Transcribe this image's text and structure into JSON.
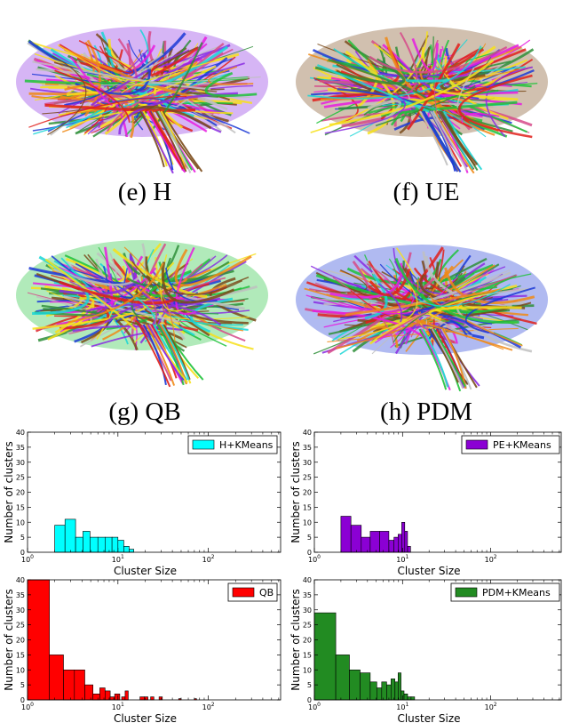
{
  "captions": {
    "e": "(e) H",
    "f": "(f) UE",
    "g": "(g) QB",
    "h": "(h) PDM"
  },
  "brain_colors": [
    "#e0201b",
    "#1fc23a",
    "#1c3ad6",
    "#e81be0",
    "#f7e01a",
    "#19d6d6",
    "#f08a16",
    "#8a2be2",
    "#7a4a1a",
    "#2f8f3a",
    "#c0c0c0",
    "#d64a8a"
  ],
  "chart_data": [
    {
      "type": "bar",
      "title": "",
      "xlabel": "Cluster Size",
      "ylabel": "Number of clusters",
      "xscale": "log",
      "xlim": [
        1,
        630
      ],
      "ylim": [
        0,
        40
      ],
      "yticks": [
        "0",
        "5",
        "10",
        "15",
        "20",
        "25",
        "30",
        "35",
        "40"
      ],
      "xticks": [
        "10^0",
        "10^1",
        "10^2"
      ],
      "legend": {
        "label": "H+KMeans",
        "placement": "top-right"
      },
      "color": "#00ffff",
      "bins": [
        {
          "x0": 2,
          "x1": 2.6,
          "count": 9
        },
        {
          "x0": 2.6,
          "x1": 3.4,
          "count": 11
        },
        {
          "x0": 3.4,
          "x1": 4.1,
          "count": 5
        },
        {
          "x0": 4.1,
          "x1": 4.9,
          "count": 7
        },
        {
          "x0": 4.9,
          "x1": 6.0,
          "count": 5
        },
        {
          "x0": 6.0,
          "x1": 7.2,
          "count": 5
        },
        {
          "x0": 7.2,
          "x1": 8.6,
          "count": 5
        },
        {
          "x0": 8.6,
          "x1": 10,
          "count": 5
        },
        {
          "x0": 10,
          "x1": 11.6,
          "count": 4
        },
        {
          "x0": 11.6,
          "x1": 13.3,
          "count": 2
        },
        {
          "x0": 13.3,
          "x1": 15,
          "count": 1
        }
      ]
    },
    {
      "type": "bar",
      "title": "",
      "xlabel": "Cluster Size",
      "ylabel": "Number of clusters",
      "xscale": "log",
      "xlim": [
        1,
        630
      ],
      "ylim": [
        0,
        40
      ],
      "yticks": [
        "0",
        "5",
        "10",
        "15",
        "20",
        "25",
        "30",
        "35",
        "40"
      ],
      "xticks": [
        "10^0",
        "10^1",
        "10^2"
      ],
      "legend": {
        "label": "PE+KMeans",
        "placement": "top-right"
      },
      "color": "#8b00d4",
      "bins": [
        {
          "x0": 2,
          "x1": 2.6,
          "count": 12
        },
        {
          "x0": 2.6,
          "x1": 3.4,
          "count": 9
        },
        {
          "x0": 3.4,
          "x1": 4.3,
          "count": 5
        },
        {
          "x0": 4.3,
          "x1": 5.5,
          "count": 7
        },
        {
          "x0": 5.5,
          "x1": 7.0,
          "count": 7
        },
        {
          "x0": 7.0,
          "x1": 8.0,
          "count": 4
        },
        {
          "x0": 8.0,
          "x1": 8.9,
          "count": 5
        },
        {
          "x0": 8.9,
          "x1": 9.8,
          "count": 6
        },
        {
          "x0": 9.8,
          "x1": 10.6,
          "count": 10
        },
        {
          "x0": 10.6,
          "x1": 11.4,
          "count": 7
        },
        {
          "x0": 11.4,
          "x1": 12.3,
          "count": 2
        }
      ]
    },
    {
      "type": "bar",
      "title": "",
      "xlabel": "Cluster Size",
      "ylabel": "Number of clusters",
      "xscale": "log",
      "xlim": [
        1,
        630
      ],
      "ylim": [
        0,
        40
      ],
      "yticks": [
        "0",
        "5",
        "10",
        "15",
        "20",
        "25",
        "30",
        "35",
        "40"
      ],
      "xticks": [
        "10^0",
        "10^1",
        "10^2"
      ],
      "legend": {
        "label": "QB",
        "placement": "top-right"
      },
      "color": "#ff0000",
      "bins": [
        {
          "x0": 1,
          "x1": 1.75,
          "count": 40
        },
        {
          "x0": 1.75,
          "x1": 2.5,
          "count": 15
        },
        {
          "x0": 2.5,
          "x1": 3.3,
          "count": 10
        },
        {
          "x0": 3.3,
          "x1": 4.3,
          "count": 10
        },
        {
          "x0": 4.3,
          "x1": 5.3,
          "count": 5
        },
        {
          "x0": 5.3,
          "x1": 6.3,
          "count": 2
        },
        {
          "x0": 6.3,
          "x1": 7.2,
          "count": 4
        },
        {
          "x0": 7.2,
          "x1": 8.2,
          "count": 3
        },
        {
          "x0": 8.2,
          "x1": 9.2,
          "count": 1
        },
        {
          "x0": 9.2,
          "x1": 10.5,
          "count": 2
        },
        {
          "x0": 11,
          "x1": 12,
          "count": 1
        },
        {
          "x0": 12,
          "x1": 13,
          "count": 3
        },
        {
          "x0": 17.5,
          "x1": 19.5,
          "count": 1
        },
        {
          "x0": 19.5,
          "x1": 21.5,
          "count": 1
        },
        {
          "x0": 23,
          "x1": 25,
          "count": 1
        },
        {
          "x0": 28.5,
          "x1": 31,
          "count": 1
        },
        {
          "x0": 47,
          "x1": 50,
          "count": 0.4
        },
        {
          "x0": 70,
          "x1": 74,
          "count": 0.4
        }
      ]
    },
    {
      "type": "bar",
      "title": "",
      "xlabel": "Cluster Size",
      "ylabel": "Number of clusters",
      "xscale": "log",
      "xlim": [
        1,
        630
      ],
      "ylim": [
        0,
        40
      ],
      "yticks": [
        "0",
        "5",
        "10",
        "15",
        "20",
        "25",
        "30",
        "35",
        "40"
      ],
      "xticks": [
        "10^0",
        "10^1",
        "10^2"
      ],
      "legend": {
        "label": "PDM+KMeans",
        "placement": "top-right"
      },
      "color": "#228b22",
      "bins": [
        {
          "x0": 1,
          "x1": 1.75,
          "count": 29
        },
        {
          "x0": 1.75,
          "x1": 2.5,
          "count": 15
        },
        {
          "x0": 2.5,
          "x1": 3.3,
          "count": 10
        },
        {
          "x0": 3.3,
          "x1": 4.3,
          "count": 9
        },
        {
          "x0": 4.3,
          "x1": 5.1,
          "count": 6
        },
        {
          "x0": 5.1,
          "x1": 5.8,
          "count": 4
        },
        {
          "x0": 5.8,
          "x1": 6.6,
          "count": 6
        },
        {
          "x0": 6.6,
          "x1": 7.4,
          "count": 5
        },
        {
          "x0": 7.4,
          "x1": 8.2,
          "count": 7
        },
        {
          "x0": 8.2,
          "x1": 8.9,
          "count": 6
        },
        {
          "x0": 8.9,
          "x1": 9.6,
          "count": 9
        },
        {
          "x0": 9.6,
          "x1": 10.4,
          "count": 3
        },
        {
          "x0": 10.4,
          "x1": 11.4,
          "count": 2
        },
        {
          "x0": 11.4,
          "x1": 12.5,
          "count": 1
        },
        {
          "x0": 12.5,
          "x1": 13.7,
          "count": 1
        }
      ]
    }
  ]
}
